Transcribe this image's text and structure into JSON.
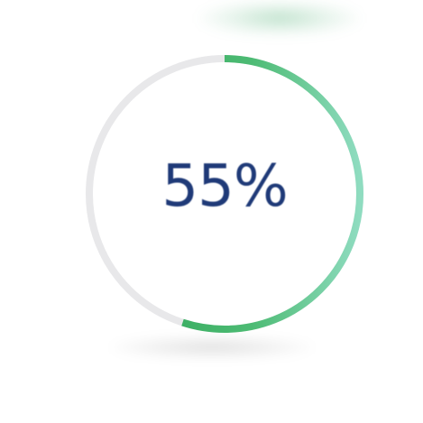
{
  "progress": {
    "percent_label": "55%",
    "value": 0.55,
    "caption_line1": "",
    "caption_line2": "",
    "colors": {
      "track": "#e8e8ea",
      "fill_start": "#27a150",
      "fill_end": "#7fd3b1",
      "text": "#1f3a78"
    }
  }
}
